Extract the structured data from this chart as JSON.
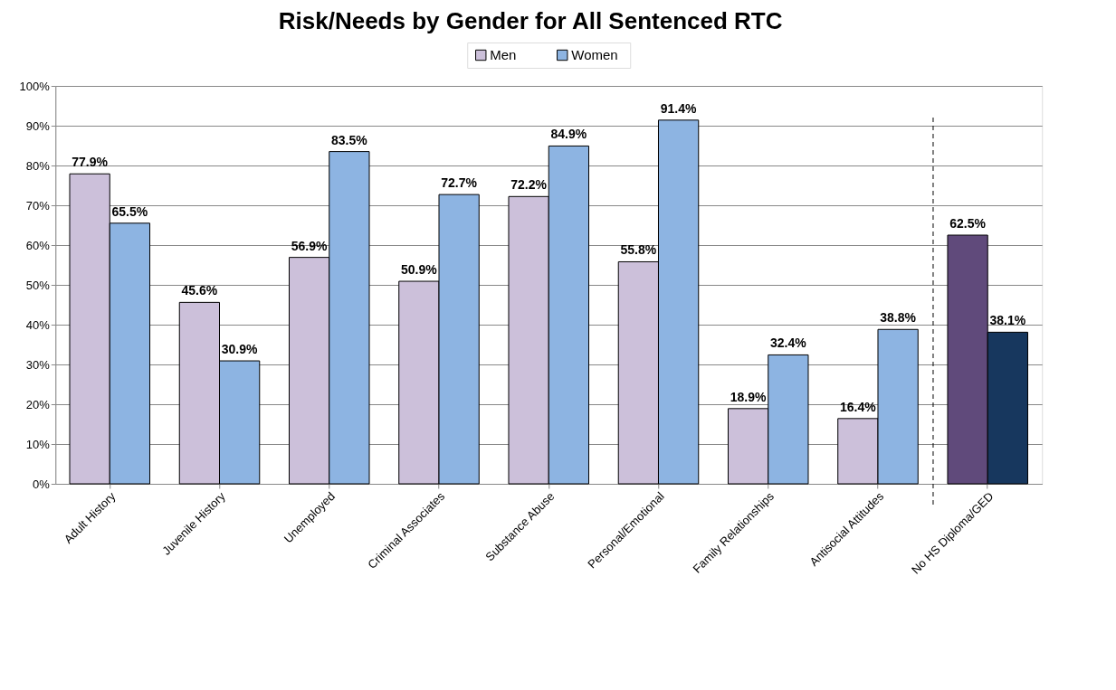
{
  "chart_data": {
    "type": "bar",
    "title": "Risk/Needs by Gender for All Sentenced RTC",
    "categories": [
      "Adult History",
      "Juvenile History",
      "Unemployed",
      "Criminal Associates",
      "Substance Abuse",
      "Personal/Emotional",
      "Family Relationships",
      "Antisocial Attitudes",
      "No HS Diploma/GED"
    ],
    "series": [
      {
        "name": "Men",
        "color": "#ccc0da",
        "colors": [
          "#ccc0da",
          "#ccc0da",
          "#ccc0da",
          "#ccc0da",
          "#ccc0da",
          "#ccc0da",
          "#ccc0da",
          "#ccc0da",
          "#604a7b"
        ],
        "values": [
          77.9,
          45.6,
          56.9,
          50.9,
          72.2,
          55.8,
          18.9,
          16.4,
          62.5
        ],
        "value_labels": [
          "77.9%",
          "45.6%",
          "56.9%",
          "50.9%",
          "72.2%",
          "55.8%",
          "18.9%",
          "16.4%",
          "62.5%"
        ]
      },
      {
        "name": "Women",
        "color": "#8db4e2",
        "colors": [
          "#8db4e2",
          "#8db4e2",
          "#8db4e2",
          "#8db4e2",
          "#8db4e2",
          "#8db4e2",
          "#8db4e2",
          "#8db4e2",
          "#17375e"
        ],
        "values": [
          65.5,
          30.9,
          83.5,
          72.7,
          84.9,
          91.4,
          32.4,
          38.8,
          38.1
        ],
        "value_labels": [
          "65.5%",
          "30.9%",
          "83.5%",
          "72.7%",
          "84.9%",
          "91.4%",
          "32.4%",
          "38.8%",
          "38.1%"
        ]
      }
    ],
    "ylim": [
      0,
      100
    ],
    "yticks": [
      {
        "value": 0,
        "label": "0%"
      },
      {
        "value": 10,
        "label": "10%"
      },
      {
        "value": 20,
        "label": "20%"
      },
      {
        "value": 30,
        "label": "30%"
      },
      {
        "value": 40,
        "label": "40%"
      },
      {
        "value": 50,
        "label": "50%"
      },
      {
        "value": 60,
        "label": "60%"
      },
      {
        "value": 70,
        "label": "70%"
      },
      {
        "value": 80,
        "label": "80%"
      },
      {
        "value": 90,
        "label": "90%"
      },
      {
        "value": 100,
        "label": "100%"
      }
    ],
    "grid": "y",
    "legend": "top",
    "ref_lines": [
      {
        "axis": "x",
        "value": "No HS Diploma/GED",
        "line_style": "dashed",
        "color": "#000000"
      }
    ]
  }
}
